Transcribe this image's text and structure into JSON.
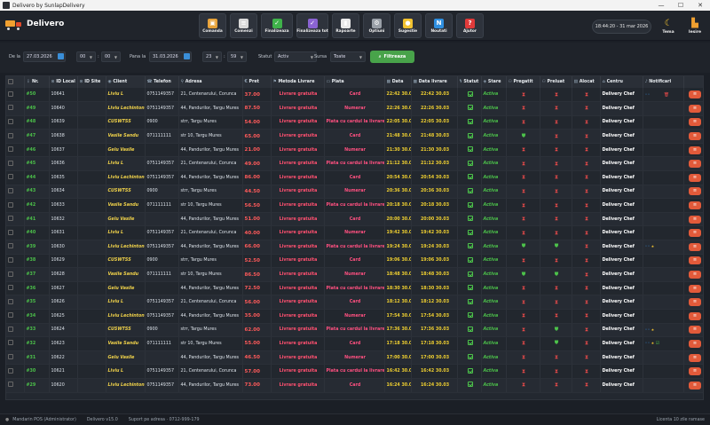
{
  "window": {
    "title": "Delivero by SunlapDelivery",
    "controls": [
      "—",
      "☐",
      "✕"
    ]
  },
  "header": {
    "app_name": "Delivero",
    "nav": [
      {
        "label": "Comanda",
        "icon": "box-icon",
        "color": "#e8a33a",
        "glyph": "▣"
      },
      {
        "label": "Comenzi",
        "icon": "clipboard-icon",
        "color": "#d9d9d9",
        "glyph": "≡"
      },
      {
        "label": "Finalizeaza",
        "icon": "check-icon",
        "color": "#3fb24a",
        "glyph": "✓"
      },
      {
        "label": "Finalizeaza tot",
        "icon": "check-all-icon",
        "color": "#8a63d2",
        "glyph": "✓"
      },
      {
        "label": "Rapoarte",
        "icon": "chart-icon",
        "color": "#e9e9e9",
        "glyph": "▮"
      },
      {
        "label": "Optiuni",
        "icon": "gear-icon",
        "color": "#9aa0a8",
        "glyph": "⚙"
      },
      {
        "label": "Sugestie",
        "icon": "lightbulb-icon",
        "color": "#f2c230",
        "glyph": "●"
      },
      {
        "label": "Noutati",
        "icon": "new-badge-icon",
        "color": "#2f8fe0",
        "glyph": "N"
      },
      {
        "label": "Ajutor",
        "icon": "question-icon",
        "color": "#e03a3a",
        "glyph": "?"
      }
    ],
    "clock": "18:44:20 - 31 mar 2026",
    "tema_label": "Tema",
    "iesire_label": "Iesire"
  },
  "filters": {
    "de_la_label": "De la",
    "de_la_date": "27.03.2026",
    "de_la_hour": "00",
    "de_la_min": "00",
    "pana_la_label": "Pana la",
    "pana_la_date": "31.03.2026",
    "pana_la_hour": "23",
    "pana_la_min": "59",
    "statut_label": "Statut",
    "statut_value": "Activ",
    "sursa_label": "Sursa",
    "sursa_value": "Toate",
    "filter_button": "Filtreaza"
  },
  "table": {
    "columns": [
      "",
      "Nr.",
      "ID Local",
      "ID Site",
      "Client",
      "Telefon",
      "Adresa",
      "Pret",
      "Metoda Livrare",
      "Plata",
      "Data",
      "Data livrare",
      "Statut",
      "Stare",
      "Pregatit",
      "Preluat",
      "Alocat",
      "Centru",
      "Notificari",
      ""
    ],
    "rows": [
      {
        "nr": "#50",
        "id": "10641",
        "client": "Liviu L",
        "tel": "0751149357",
        "adr": "21, Centenarului, Corunca",
        "pret": "37.00",
        "metoda": "Livrare gratuita",
        "plata": "Card",
        "data": "22:42 30.03",
        "livr": "22:42 30.03",
        "prg": "h",
        "prl": "h",
        "alc": "h",
        "notif": "dots",
        "trash": true
      },
      {
        "nr": "#49",
        "id": "10640",
        "client": "Liviu Lechinton",
        "tel": "0751149357",
        "adr": "44, Pandurilor, Targu Mures",
        "pret": "87.50",
        "metoda": "Livrare gratuita",
        "plata": "Numerar",
        "data": "22:26 30.03",
        "livr": "22:26 30.03",
        "prg": "h",
        "prl": "h",
        "alc": "h",
        "notif": "",
        "trash": false
      },
      {
        "nr": "#48",
        "id": "10639",
        "client": "CUSWTSS",
        "tel": "0900",
        "adr": "strr, Targu Mures",
        "pret": "54.00",
        "metoda": "Livrare gratuita",
        "plata": "Plata cu cardul la livrare",
        "data": "22:05 30.03",
        "livr": "22:05 30.03",
        "prg": "h",
        "prl": "h",
        "alc": "h",
        "notif": "",
        "trash": false
      },
      {
        "nr": "#47",
        "id": "10638",
        "client": "Vasile Sandu",
        "tel": "071111111",
        "adr": "str 10, Targu Mures",
        "pret": "65.00",
        "metoda": "Livrare gratuita",
        "plata": "Card",
        "data": "21:48 30.03",
        "livr": "21:48 30.03",
        "prg": "g",
        "prl": "h",
        "alc": "h",
        "notif": "",
        "trash": false
      },
      {
        "nr": "#46",
        "id": "10637",
        "client": "Gelu Vasile",
        "tel": "",
        "adr": "44, Pandurilor, Targu Mures",
        "pret": "21.00",
        "metoda": "Livrare gratuita",
        "plata": "Numerar",
        "data": "21:30 30.03",
        "livr": "21:30 30.03",
        "prg": "h",
        "prl": "h",
        "alc": "h",
        "notif": "",
        "trash": false
      },
      {
        "nr": "#45",
        "id": "10636",
        "client": "Liviu L",
        "tel": "0751149357",
        "adr": "21, Centenarului, Corunca",
        "pret": "49.00",
        "metoda": "Livrare gratuita",
        "plata": "Plata cu cardul la livrare",
        "data": "21:12 30.03",
        "livr": "21:12 30.03",
        "prg": "h",
        "prl": "h",
        "alc": "h",
        "notif": "",
        "trash": false
      },
      {
        "nr": "#44",
        "id": "10635",
        "client": "Liviu Lechinton",
        "tel": "0751149357",
        "adr": "44, Pandurilor, Targu Mures",
        "pret": "86.00",
        "metoda": "Livrare gratuita",
        "plata": "Card",
        "data": "20:54 30.03",
        "livr": "20:54 30.03",
        "prg": "h",
        "prl": "h",
        "alc": "h",
        "notif": "",
        "trash": false
      },
      {
        "nr": "#43",
        "id": "10634",
        "client": "CUSWTSS",
        "tel": "0900",
        "adr": "strr, Targu Mures",
        "pret": "44.50",
        "metoda": "Livrare gratuita",
        "plata": "Numerar",
        "data": "20:36 30.03",
        "livr": "20:36 30.03",
        "prg": "h",
        "prl": "h",
        "alc": "h",
        "notif": "",
        "trash": false
      },
      {
        "nr": "#42",
        "id": "10633",
        "client": "Vasile Sandu",
        "tel": "071111111",
        "adr": "str 10, Targu Mures",
        "pret": "56.50",
        "metoda": "Livrare gratuita",
        "plata": "Plata cu cardul la livrare",
        "data": "20:18 30.03",
        "livr": "20:18 30.03",
        "prg": "h",
        "prl": "h",
        "alc": "h",
        "notif": "",
        "trash": false
      },
      {
        "nr": "#41",
        "id": "10632",
        "client": "Gelu Vasile",
        "tel": "",
        "adr": "44, Pandurilor, Targu Mures",
        "pret": "51.00",
        "metoda": "Livrare gratuita",
        "plata": "Card",
        "data": "20:00 30.03",
        "livr": "20:00 30.03",
        "prg": "h",
        "prl": "h",
        "alc": "h",
        "notif": "",
        "trash": false
      },
      {
        "nr": "#40",
        "id": "10631",
        "client": "Liviu L",
        "tel": "0751149357",
        "adr": "21, Centenarului, Corunca",
        "pret": "40.00",
        "metoda": "Livrare gratuita",
        "plata": "Numerar",
        "data": "19:42 30.03",
        "livr": "19:42 30.03",
        "prg": "h",
        "prl": "h",
        "alc": "h",
        "notif": "",
        "trash": false
      },
      {
        "nr": "#39",
        "id": "10630",
        "client": "Liviu Lechinton",
        "tel": "0751149357",
        "adr": "44, Pandurilor, Targu Mures",
        "pret": "66.00",
        "metoda": "Livrare gratuita",
        "plata": "Plata cu cardul la livrare",
        "data": "19:24 30.03",
        "livr": "19:24 30.03",
        "prg": "g",
        "prl": "g",
        "alc": "h",
        "notif": "dots-star",
        "trash": false
      },
      {
        "nr": "#38",
        "id": "10629",
        "client": "CUSWTSS",
        "tel": "0900",
        "adr": "strr, Targu Mures",
        "pret": "52.50",
        "metoda": "Livrare gratuita",
        "plata": "Card",
        "data": "19:06 30.03",
        "livr": "19:06 30.03",
        "prg": "h",
        "prl": "h",
        "alc": "h",
        "notif": "",
        "trash": false
      },
      {
        "nr": "#37",
        "id": "10628",
        "client": "Vasile Sandu",
        "tel": "071111111",
        "adr": "str 10, Targu Mures",
        "pret": "86.50",
        "metoda": "Livrare gratuita",
        "plata": "Numerar",
        "data": "18:48 30.03",
        "livr": "18:48 30.03",
        "prg": "g",
        "prl": "g",
        "alc": "h",
        "notif": "",
        "trash": false
      },
      {
        "nr": "#36",
        "id": "10627",
        "client": "Gelu Vasile",
        "tel": "",
        "adr": "44, Pandurilor, Targu Mures",
        "pret": "72.50",
        "metoda": "Livrare gratuita",
        "plata": "Plata cu cardul la livrare",
        "data": "18:30 30.03",
        "livr": "18:30 30.03",
        "prg": "h",
        "prl": "h",
        "alc": "h",
        "notif": "",
        "trash": false
      },
      {
        "nr": "#35",
        "id": "10626",
        "client": "Liviu L",
        "tel": "0751149357",
        "adr": "21, Centenarului, Corunca",
        "pret": "56.00",
        "metoda": "Livrare gratuita",
        "plata": "Card",
        "data": "18:12 30.03",
        "livr": "18:12 30.03",
        "prg": "h",
        "prl": "h",
        "alc": "h",
        "notif": "",
        "trash": false
      },
      {
        "nr": "#34",
        "id": "10625",
        "client": "Liviu Lechinton",
        "tel": "0751149357",
        "adr": "44, Pandurilor, Targu Mures",
        "pret": "35.00",
        "metoda": "Livrare gratuita",
        "plata": "Numerar",
        "data": "17:54 30.03",
        "livr": "17:54 30.03",
        "prg": "h",
        "prl": "h",
        "alc": "h",
        "notif": "",
        "trash": false
      },
      {
        "nr": "#33",
        "id": "10624",
        "client": "CUSWTSS",
        "tel": "0900",
        "adr": "strr, Targu Mures",
        "pret": "62.00",
        "metoda": "Livrare gratuita",
        "plata": "Plata cu cardul la livrare",
        "data": "17:36 30.03",
        "livr": "17:36 30.03",
        "prg": "h",
        "prl": "g",
        "alc": "h",
        "notif": "dots-star",
        "trash": false
      },
      {
        "nr": "#32",
        "id": "10623",
        "client": "Vasile Sandu",
        "tel": "071111111",
        "adr": "str 10, Targu Mures",
        "pret": "55.00",
        "metoda": "Livrare gratuita",
        "plata": "Card",
        "data": "17:18 30.03",
        "livr": "17:18 30.03",
        "prg": "h",
        "prl": "g",
        "alc": "h",
        "notif": "dots-star-check",
        "trash": false
      },
      {
        "nr": "#31",
        "id": "10622",
        "client": "Gelu Vasile",
        "tel": "",
        "adr": "44, Pandurilor, Targu Mures",
        "pret": "46.50",
        "metoda": "Livrare gratuita",
        "plata": "Numerar",
        "data": "17:00 30.03",
        "livr": "17:00 30.03",
        "prg": "h",
        "prl": "h",
        "alc": "h",
        "notif": "",
        "trash": false
      },
      {
        "nr": "#30",
        "id": "10621",
        "client": "Liviu L",
        "tel": "0751149357",
        "adr": "21, Centenarului, Corunca",
        "pret": "57.00",
        "metoda": "Livrare gratuita",
        "plata": "Plata cu cardul la livrare",
        "data": "16:42 30.03",
        "livr": "16:42 30.03",
        "prg": "h",
        "prl": "h",
        "alc": "h",
        "notif": "",
        "trash": false
      },
      {
        "nr": "#29",
        "id": "10620",
        "client": "Liviu Lechinton",
        "tel": "0751149357",
        "adr": "44, Pandurilor, Targu Mures",
        "pret": "73.00",
        "metoda": "Livrare gratuita",
        "plata": "Card",
        "data": "16:24 30.03",
        "livr": "16:24 30.03",
        "prg": "h",
        "prl": "h",
        "alc": "h",
        "notif": "",
        "trash": false
      }
    ],
    "stare_value": "Activa",
    "centru_value": "Delivery Chef"
  },
  "statusbar": {
    "left": "Mandarin POS (Administrator)",
    "version": "Delivero v15.0",
    "help": "Suport pe adresa ·  0712-999-179",
    "right": "Licenta 10 zile ramase"
  }
}
